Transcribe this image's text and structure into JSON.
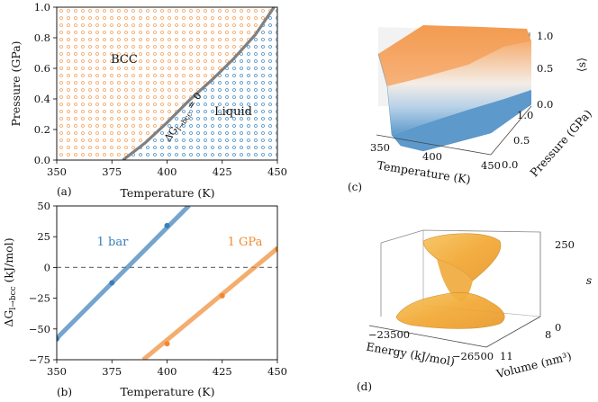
{
  "chart_data": [
    {
      "panel": "(a)",
      "type": "area",
      "xlabel": "Temperature (K)",
      "ylabel": "Pressure (GPa)",
      "xlim": [
        350,
        450
      ],
      "ylim": [
        0.0,
        1.0
      ],
      "xticks": [
        "350",
        "375",
        "400",
        "425",
        "450"
      ],
      "yticks": [
        "0.0",
        "0.2",
        "0.4",
        "0.6",
        "0.8",
        "1.0"
      ],
      "regions": [
        {
          "name": "BCC",
          "color": "#f5a05a"
        },
        {
          "name": "Liquid",
          "color": "#4d8fc5"
        }
      ],
      "boundary": {
        "label": "ΔG_{l→bcc} = 0",
        "label_main": "ΔG",
        "label_sub": "l→bcc",
        "label_eq": " = 0",
        "color": "#808080",
        "x": [
          380.0,
          390,
          400,
          410,
          420,
          430,
          440,
          448.5
        ],
        "y": [
          0.0,
          0.112,
          0.245,
          0.39,
          0.52,
          0.66,
          0.82,
          1.0
        ]
      }
    },
    {
      "panel": "(b)",
      "type": "line",
      "xlabel": "Temperature (K)",
      "ylabel": "ΔG_{l→bcc} (kJ/mol)",
      "ylabel_main": "ΔG",
      "ylabel_sub": "l→bcc",
      "ylabel_unit": " (kJ/mol)",
      "xlim": [
        350,
        450
      ],
      "ylim": [
        -75,
        50
      ],
      "xticks": [
        "350",
        "375",
        "400",
        "425",
        "450"
      ],
      "yticks": [
        "−75",
        "−50",
        "−25",
        "0",
        "25",
        "50"
      ],
      "reference_line": {
        "y": 0,
        "style": "dashed"
      },
      "series": [
        {
          "name": "1 bar",
          "color": "#3a7fb9",
          "line_x": [
            350,
            410
          ],
          "line_y": [
            -57.6,
            50.4
          ],
          "points_x": [
            350,
            375,
            400
          ],
          "points_y": [
            -58,
            -12.5,
            34
          ]
        },
        {
          "name": "1 GPa",
          "color": "#f08a30",
          "line_x": [
            389.2,
            450
          ],
          "line_y": [
            -75,
            15.5
          ],
          "points_x": [
            400,
            425,
            450
          ],
          "points_y": [
            -62,
            -23,
            15
          ]
        }
      ]
    },
    {
      "panel": "(c)",
      "type": "surface",
      "xlabel": "Temperature (K)",
      "ylabel": "Pressure (GPa)",
      "zlabel": "⟨s⟩",
      "xticks": [
        "350",
        "400",
        "450"
      ],
      "yticks": [
        "0.0",
        "0.5",
        "1.0"
      ],
      "zticks": [
        "0.0",
        "0.5",
        "1.0"
      ],
      "colormap": [
        "#4d8fc5",
        "#ffffff",
        "#f5a05a"
      ]
    },
    {
      "panel": "(d)",
      "type": "surface",
      "xlabel": "Energy (kJ/mol)",
      "ylabel": "Volume (nm³)",
      "zlabel": "s",
      "xticks": [
        "−23500",
        "−26500"
      ],
      "yticks": [
        "11",
        "8"
      ],
      "zticks": [
        "0",
        "250"
      ],
      "surface_color": "#f5b23c"
    }
  ]
}
